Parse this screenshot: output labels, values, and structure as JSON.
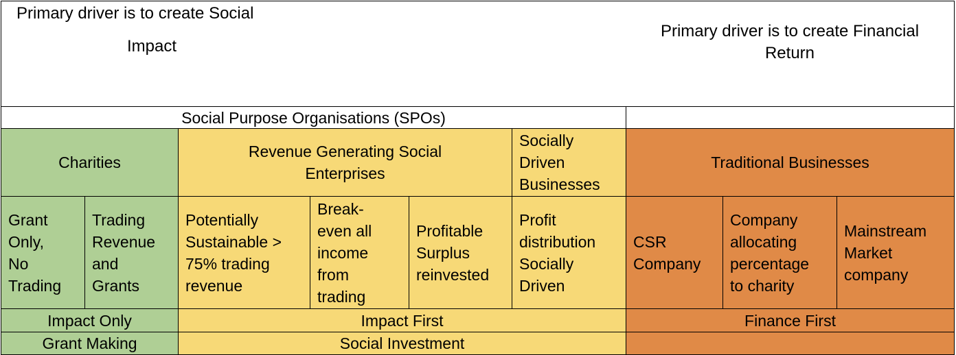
{
  "header": {
    "social_line1": "Primary driver is to create Social",
    "social_line2": "Impact",
    "financial": "Primary driver is to create Financial\nReturn"
  },
  "spo_label": "Social Purpose Organisations (SPOs)",
  "categories": {
    "charities": "Charities",
    "rgse": "Revenue Generating Social\nEnterprises",
    "sdb": "Socially\nDriven\nBusinesses",
    "traditional": "Traditional Businesses"
  },
  "types": {
    "grant_only": "Grant\nOnly,\nNo\nTrading",
    "trading_revenue": "Trading\nRevenue\nand\nGrants",
    "potentially_sustainable": "Potentially\nSustainable >\n75% trading\nrevenue",
    "break_even": "Break-\neven all\nincome\nfrom\ntrading",
    "profitable": "Profitable\nSurplus\nreinvested",
    "profit_distribution": "Profit\ndistribution\nSocially\nDriven",
    "csr": "CSR\nCompany",
    "company_allocating": "Company\nallocating\npercentage\nto charity",
    "mainstream": "Mainstream\nMarket\ncompany"
  },
  "impact_row": {
    "impact_only": "Impact Only",
    "impact_first": "Impact First",
    "finance_first": "Finance First"
  },
  "investment_row": {
    "grant_making": "Grant Making",
    "social_investment": "Social Investment"
  },
  "colors": {
    "green": "#afcf95",
    "yellow": "#f7d977",
    "orange": "#e08a47"
  }
}
